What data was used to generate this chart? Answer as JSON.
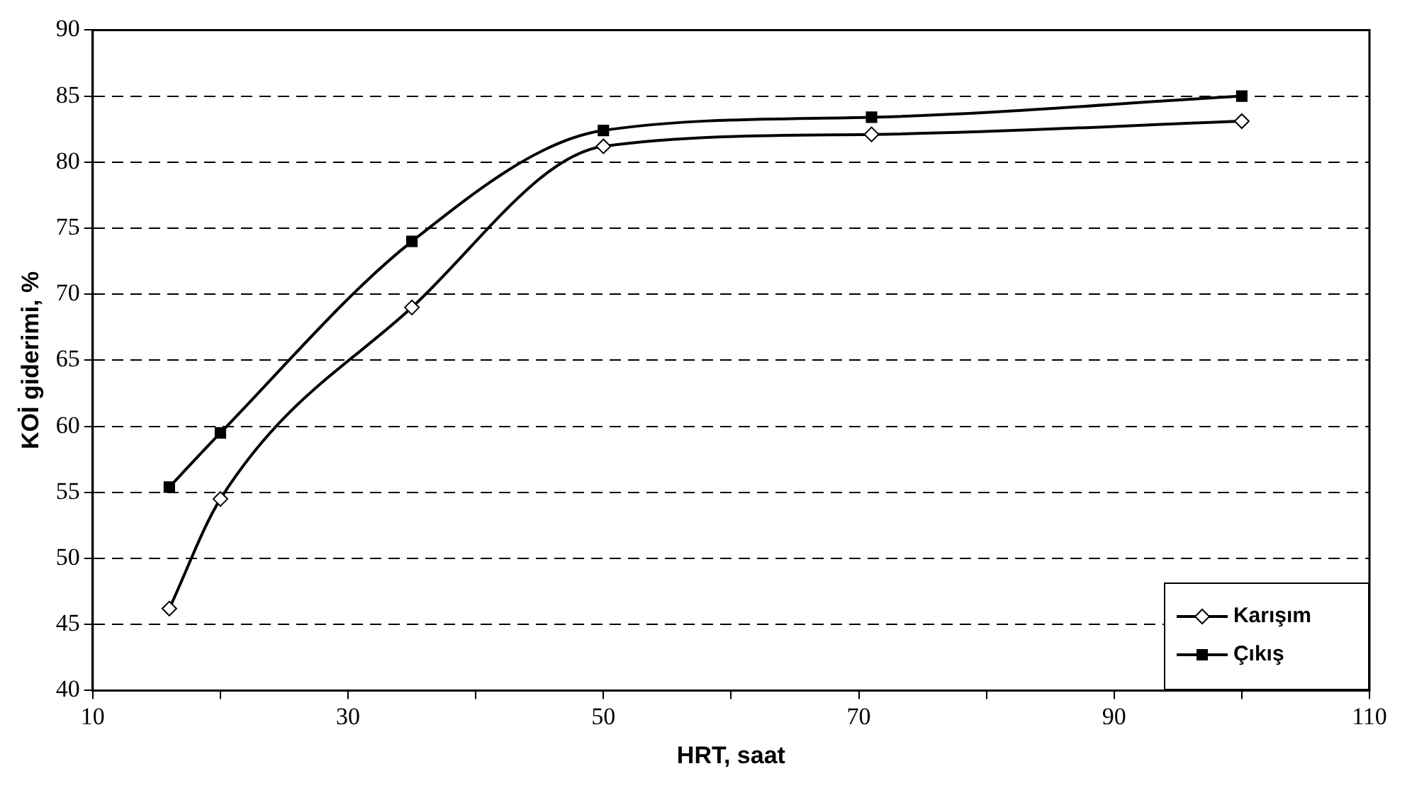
{
  "chart_data": {
    "type": "line",
    "xlabel": "HRT, saat",
    "ylabel": "KOİ giderimi, %",
    "xlim": [
      10,
      110
    ],
    "xticks": [
      10,
      {
        "value": 20,
        "label": null
      },
      30,
      {
        "value": 40,
        "label": null
      },
      50,
      {
        "value": 60,
        "label": null
      },
      70,
      {
        "value": 80,
        "label": null
      },
      90,
      {
        "value": 100,
        "label": null
      },
      110
    ],
    "ylim": [
      40,
      90
    ],
    "yticks": [
      40,
      45,
      50,
      55,
      60,
      65,
      70,
      75,
      80,
      85,
      90
    ],
    "grid": "y",
    "legend": "bottom right",
    "series": [
      {
        "name": "Karışım",
        "color": "#000000",
        "marker": "diamond",
        "x": [
          16,
          20,
          35,
          50,
          71,
          100
        ],
        "values": [
          46.2,
          54.5,
          69,
          81.2,
          82.1,
          83.1
        ]
      },
      {
        "name": "Çıkış",
        "color": "#000000",
        "marker": "square",
        "x": [
          16,
          20,
          35,
          50,
          71,
          100
        ],
        "values": [
          55.4,
          59.5,
          74,
          82.4,
          83.4,
          85
        ]
      }
    ]
  }
}
